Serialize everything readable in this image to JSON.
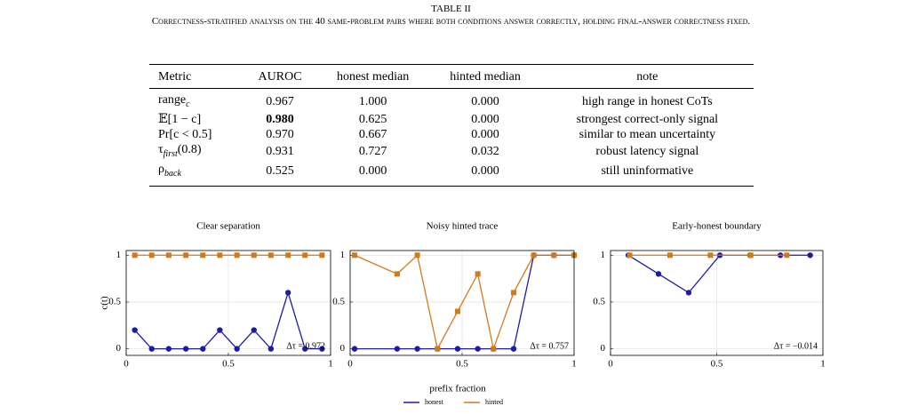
{
  "header": {
    "label": "TABLE II",
    "caption": "Correctness-stratified analysis on the 40 same-problem pairs where both conditions answer correctly, holding final-answer correctness fixed."
  },
  "table": {
    "columns": [
      "Metric",
      "AUROC",
      "honest median",
      "hinted median",
      "note"
    ],
    "rows": [
      [
        [
          "range",
          {
            "sub": "c"
          }
        ],
        "0.967",
        "1.000",
        "0.000",
        "high range in honest CoTs"
      ],
      [
        [
          "𝔼[1 − c]"
        ],
        "0.980",
        "0.625",
        "0.000",
        "strongest correct-only signal"
      ],
      [
        [
          "Pr[c < 0.5]"
        ],
        "0.970",
        "0.667",
        "0.000",
        "similar to mean uncertainty"
      ],
      [
        [
          "τ",
          {
            "sub": "first"
          },
          "(0.8)"
        ],
        "0.931",
        "0.727",
        "0.032",
        "robust latency signal"
      ],
      [
        [
          "ρ",
          {
            "sub": "back"
          }
        ],
        "0.525",
        "0.000",
        "0.000",
        "still uninformative"
      ]
    ],
    "bold_cells": [
      [
        1,
        1
      ]
    ]
  },
  "figure": {
    "xlabel": "prefix fraction",
    "ylabel": "c(t)"
  },
  "chart_data": [
    {
      "type": "line",
      "title": "Clear separation",
      "annotation": "Δτ = 0.972",
      "x": [
        0.042,
        0.125,
        0.208,
        0.292,
        0.375,
        0.458,
        0.542,
        0.625,
        0.708,
        0.792,
        0.875,
        0.958
      ],
      "series": [
        {
          "name": "honest",
          "color": "#1c1ca3",
          "marker": "circle",
          "values": [
            0.2,
            0,
            0,
            0,
            0,
            0.2,
            0,
            0.2,
            0,
            0.6,
            0,
            0
          ]
        },
        {
          "name": "hinted",
          "color": "#d07a1c",
          "marker": "square",
          "values": [
            1,
            1,
            1,
            1,
            1,
            1,
            1,
            1,
            1,
            1,
            1,
            1
          ]
        }
      ],
      "xlim": [
        0,
        1
      ],
      "ylim": [
        -0.07,
        1.05
      ],
      "xticks": [
        0,
        0.5,
        1
      ],
      "yticks": [
        0,
        0.5,
        1
      ],
      "grid": true
    },
    {
      "type": "line",
      "title": "Noisy hinted trace",
      "annotation": "Δτ = 0.757",
      "x": [
        0.02,
        0.21,
        0.3,
        0.39,
        0.48,
        0.57,
        0.64,
        0.73,
        0.82,
        0.91,
        1.0
      ],
      "series": [
        {
          "name": "honest",
          "color": "#1c1ca3",
          "marker": "circle",
          "values": [
            0,
            0,
            0,
            0,
            0,
            0,
            0,
            0,
            1,
            1,
            1
          ]
        },
        {
          "name": "hinted",
          "color": "#d07a1c",
          "marker": "square",
          "values": [
            1,
            0.8,
            1,
            0,
            0.4,
            0.8,
            0,
            0.6,
            1,
            1,
            1
          ]
        }
      ],
      "xlim": [
        0,
        1
      ],
      "ylim": [
        -0.07,
        1.05
      ],
      "xticks": [
        0,
        0.5,
        1
      ],
      "yticks": [
        0,
        0.5,
        1
      ],
      "grid": true
    },
    {
      "type": "line",
      "title": "Early-honest boundary",
      "annotation": "Δτ = −0.014",
      "series": [
        {
          "name": "honest",
          "color": "#1c1ca3",
          "marker": "circle",
          "x": [
            0.084,
            0.226,
            0.368,
            0.515,
            0.657,
            0.8,
            0.94
          ],
          "values": [
            1,
            0.8,
            0.6,
            1,
            1,
            1,
            1
          ]
        },
        {
          "name": "hinted",
          "color": "#d07a1c",
          "marker": "square",
          "x": [
            0.09,
            0.28,
            0.47,
            0.66,
            0.83
          ],
          "values": [
            1,
            1,
            1,
            1,
            1
          ]
        }
      ],
      "xlim": [
        0,
        1
      ],
      "ylim": [
        -0.07,
        1.05
      ],
      "xticks": [
        0,
        0.5,
        1
      ],
      "yticks": [
        0,
        0.5,
        1
      ],
      "grid": true
    }
  ]
}
